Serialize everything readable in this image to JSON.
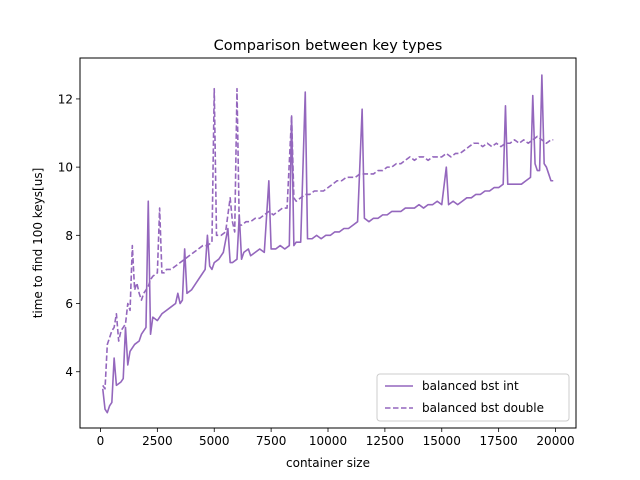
{
  "chart_data": {
    "type": "line",
    "title": "Comparison between key types",
    "xlabel": "container size",
    "ylabel": "time to find 100 keys[us]",
    "xlim": [
      -900,
      20900
    ],
    "ylim": [
      2.35,
      13.2
    ],
    "xticks": [
      0,
      2500,
      5000,
      7500,
      10000,
      12500,
      15000,
      17500,
      20000
    ],
    "xtick_labels": [
      "0",
      "2500",
      "5000",
      "7500",
      "10000",
      "12500",
      "15000",
      "17500",
      "20000"
    ],
    "yticks": [
      4,
      6,
      8,
      10,
      12
    ],
    "ytick_labels": [
      "4",
      "6",
      "8",
      "10",
      "12"
    ],
    "grid": false,
    "legend_position": "lower-right",
    "color": "#9467bd",
    "series": [
      {
        "name": "balanced bst int",
        "style": "solid",
        "points": [
          [
            100,
            3.5
          ],
          [
            200,
            2.9
          ],
          [
            300,
            2.8
          ],
          [
            400,
            3.0
          ],
          [
            500,
            3.1
          ],
          [
            600,
            4.4
          ],
          [
            700,
            3.6
          ],
          [
            900,
            3.7
          ],
          [
            1000,
            3.8
          ],
          [
            1100,
            5.3
          ],
          [
            1200,
            4.2
          ],
          [
            1300,
            4.6
          ],
          [
            1500,
            4.8
          ],
          [
            1700,
            4.9
          ],
          [
            1800,
            5.1
          ],
          [
            2000,
            5.3
          ],
          [
            2100,
            9.0
          ],
          [
            2200,
            5.1
          ],
          [
            2300,
            5.6
          ],
          [
            2500,
            5.5
          ],
          [
            2600,
            5.6
          ],
          [
            2700,
            5.7
          ],
          [
            2900,
            5.8
          ],
          [
            3100,
            5.9
          ],
          [
            3300,
            6.0
          ],
          [
            3400,
            6.3
          ],
          [
            3500,
            6.0
          ],
          [
            3600,
            6.1
          ],
          [
            3700,
            7.6
          ],
          [
            3800,
            6.3
          ],
          [
            4000,
            6.4
          ],
          [
            4200,
            6.6
          ],
          [
            4400,
            6.8
          ],
          [
            4600,
            7.0
          ],
          [
            4700,
            8.0
          ],
          [
            4800,
            7.1
          ],
          [
            4900,
            7.0
          ],
          [
            5000,
            7.2
          ],
          [
            5200,
            7.3
          ],
          [
            5400,
            7.5
          ],
          [
            5600,
            8.2
          ],
          [
            5700,
            7.2
          ],
          [
            5800,
            7.2
          ],
          [
            6000,
            7.3
          ],
          [
            6100,
            8.6
          ],
          [
            6200,
            7.3
          ],
          [
            6300,
            7.5
          ],
          [
            6500,
            7.6
          ],
          [
            6600,
            7.4
          ],
          [
            6800,
            7.5
          ],
          [
            7000,
            7.6
          ],
          [
            7200,
            7.5
          ],
          [
            7400,
            9.6
          ],
          [
            7500,
            7.6
          ],
          [
            7700,
            7.6
          ],
          [
            7900,
            7.7
          ],
          [
            8100,
            7.6
          ],
          [
            8300,
            7.7
          ],
          [
            8400,
            11.5
          ],
          [
            8500,
            7.7
          ],
          [
            8600,
            7.8
          ],
          [
            8800,
            7.8
          ],
          [
            9000,
            12.2
          ],
          [
            9100,
            7.9
          ],
          [
            9300,
            7.9
          ],
          [
            9500,
            8.0
          ],
          [
            9700,
            7.9
          ],
          [
            9900,
            8.0
          ],
          [
            10100,
            8.0
          ],
          [
            10300,
            8.1
          ],
          [
            10500,
            8.1
          ],
          [
            10700,
            8.2
          ],
          [
            10900,
            8.2
          ],
          [
            11100,
            8.3
          ],
          [
            11300,
            8.4
          ],
          [
            11500,
            11.7
          ],
          [
            11600,
            8.5
          ],
          [
            11800,
            8.4
          ],
          [
            12000,
            8.5
          ],
          [
            12200,
            8.5
          ],
          [
            12400,
            8.6
          ],
          [
            12600,
            8.6
          ],
          [
            12800,
            8.7
          ],
          [
            13000,
            8.7
          ],
          [
            13200,
            8.7
          ],
          [
            13400,
            8.8
          ],
          [
            13600,
            8.8
          ],
          [
            13800,
            8.8
          ],
          [
            14000,
            8.9
          ],
          [
            14200,
            8.8
          ],
          [
            14400,
            8.9
          ],
          [
            14600,
            8.9
          ],
          [
            14800,
            9.0
          ],
          [
            15000,
            8.9
          ],
          [
            15200,
            10.0
          ],
          [
            15300,
            8.9
          ],
          [
            15500,
            9.0
          ],
          [
            15700,
            8.9
          ],
          [
            15900,
            9.0
          ],
          [
            16100,
            9.1
          ],
          [
            16300,
            9.1
          ],
          [
            16500,
            9.2
          ],
          [
            16700,
            9.2
          ],
          [
            16900,
            9.3
          ],
          [
            17100,
            9.3
          ],
          [
            17300,
            9.4
          ],
          [
            17500,
            9.4
          ],
          [
            17700,
            9.5
          ],
          [
            17800,
            11.8
          ],
          [
            17900,
            9.5
          ],
          [
            18100,
            9.5
          ],
          [
            18300,
            9.5
          ],
          [
            18500,
            9.5
          ],
          [
            18700,
            9.6
          ],
          [
            18900,
            9.7
          ],
          [
            19000,
            12.1
          ],
          [
            19100,
            10.1
          ],
          [
            19200,
            9.9
          ],
          [
            19300,
            9.9
          ],
          [
            19400,
            12.7
          ],
          [
            19500,
            10.1
          ],
          [
            19600,
            10.0
          ],
          [
            19700,
            9.8
          ],
          [
            19800,
            9.6
          ],
          [
            19900,
            9.6
          ]
        ]
      },
      {
        "name": "balanced bst double",
        "style": "dashed",
        "points": [
          [
            100,
            3.6
          ],
          [
            200,
            3.5
          ],
          [
            300,
            4.8
          ],
          [
            400,
            5.0
          ],
          [
            500,
            5.2
          ],
          [
            600,
            5.3
          ],
          [
            700,
            5.7
          ],
          [
            800,
            4.9
          ],
          [
            900,
            5.2
          ],
          [
            1000,
            5.3
          ],
          [
            1100,
            5.4
          ],
          [
            1200,
            6.0
          ],
          [
            1300,
            5.8
          ],
          [
            1400,
            7.7
          ],
          [
            1500,
            6.4
          ],
          [
            1600,
            6.6
          ],
          [
            1700,
            6.3
          ],
          [
            1800,
            6.1
          ],
          [
            1900,
            6.3
          ],
          [
            2000,
            6.4
          ],
          [
            2100,
            6.5
          ],
          [
            2200,
            6.7
          ],
          [
            2300,
            6.8
          ],
          [
            2500,
            6.9
          ],
          [
            2600,
            8.8
          ],
          [
            2700,
            6.9
          ],
          [
            2800,
            6.9
          ],
          [
            2900,
            7.0
          ],
          [
            3100,
            7.0
          ],
          [
            3300,
            7.1
          ],
          [
            3500,
            7.2
          ],
          [
            3700,
            7.3
          ],
          [
            3900,
            7.4
          ],
          [
            4100,
            7.5
          ],
          [
            4300,
            7.6
          ],
          [
            4500,
            7.7
          ],
          [
            4700,
            7.7
          ],
          [
            4900,
            7.8
          ],
          [
            5000,
            12.3
          ],
          [
            5100,
            8.0
          ],
          [
            5300,
            8.0
          ],
          [
            5500,
            8.1
          ],
          [
            5700,
            9.1
          ],
          [
            5800,
            8.4
          ],
          [
            5900,
            8.1
          ],
          [
            6000,
            12.3
          ],
          [
            6100,
            8.3
          ],
          [
            6200,
            8.3
          ],
          [
            6400,
            8.4
          ],
          [
            6600,
            8.4
          ],
          [
            6800,
            8.5
          ],
          [
            7000,
            8.5
          ],
          [
            7200,
            8.6
          ],
          [
            7400,
            8.7
          ],
          [
            7600,
            8.6
          ],
          [
            7800,
            8.7
          ],
          [
            8000,
            8.8
          ],
          [
            8200,
            8.8
          ],
          [
            8400,
            11.5
          ],
          [
            8500,
            9.1
          ],
          [
            8600,
            9.0
          ],
          [
            8800,
            9.1
          ],
          [
            9000,
            9.2
          ],
          [
            9200,
            9.2
          ],
          [
            9400,
            9.3
          ],
          [
            9600,
            9.3
          ],
          [
            9800,
            9.3
          ],
          [
            10000,
            9.4
          ],
          [
            10200,
            9.5
          ],
          [
            10400,
            9.6
          ],
          [
            10600,
            9.6
          ],
          [
            10800,
            9.7
          ],
          [
            11000,
            9.7
          ],
          [
            11200,
            9.7
          ],
          [
            11400,
            9.8
          ],
          [
            11600,
            9.8
          ],
          [
            11800,
            9.8
          ],
          [
            12000,
            9.8
          ],
          [
            12200,
            9.9
          ],
          [
            12400,
            9.9
          ],
          [
            12600,
            10.0
          ],
          [
            12800,
            10.0
          ],
          [
            13000,
            10.1
          ],
          [
            13200,
            10.1
          ],
          [
            13400,
            10.2
          ],
          [
            13600,
            10.3
          ],
          [
            13800,
            10.2
          ],
          [
            14000,
            10.3
          ],
          [
            14200,
            10.3
          ],
          [
            14400,
            10.2
          ],
          [
            14600,
            10.3
          ],
          [
            14800,
            10.3
          ],
          [
            15000,
            10.3
          ],
          [
            15200,
            10.4
          ],
          [
            15400,
            10.3
          ],
          [
            15600,
            10.4
          ],
          [
            15800,
            10.4
          ],
          [
            16000,
            10.5
          ],
          [
            16200,
            10.6
          ],
          [
            16400,
            10.7
          ],
          [
            16600,
            10.7
          ],
          [
            16800,
            10.6
          ],
          [
            17000,
            10.7
          ],
          [
            17200,
            10.6
          ],
          [
            17400,
            10.7
          ],
          [
            17600,
            10.6
          ],
          [
            17800,
            10.7
          ],
          [
            18000,
            10.7
          ],
          [
            18200,
            10.8
          ],
          [
            18400,
            10.7
          ],
          [
            18600,
            10.8
          ],
          [
            18800,
            10.7
          ],
          [
            19000,
            10.8
          ],
          [
            19200,
            10.9
          ],
          [
            19400,
            10.8
          ],
          [
            19600,
            10.7
          ],
          [
            19800,
            10.8
          ],
          [
            19900,
            10.8
          ]
        ]
      }
    ]
  }
}
